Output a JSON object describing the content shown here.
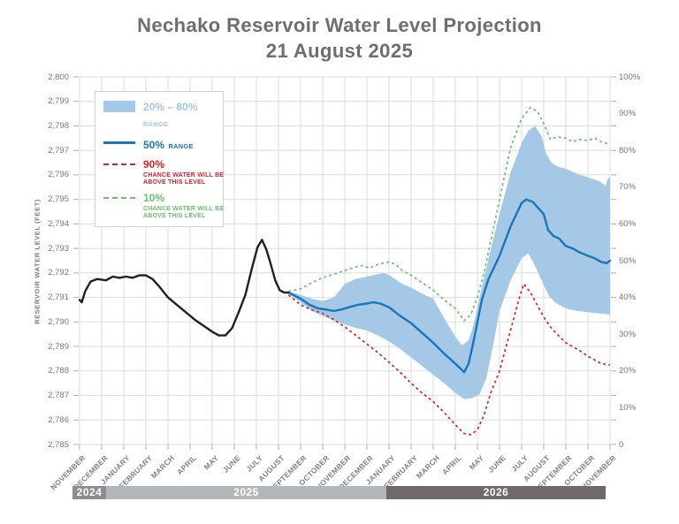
{
  "title": {
    "line1": "Nechako Reservoir Water Level Projection",
    "line2": "21 August 2025"
  },
  "y_axis": {
    "title": "RESERVOIR WATER LEVEL (FEET)",
    "min": 2785,
    "max": 2800,
    "step": 1
  },
  "y2_axis": {
    "ticks": [
      "100%",
      "90%",
      "80%",
      "70%",
      "60%",
      "50%",
      "40%",
      "30%",
      "20%",
      "10%",
      "0"
    ]
  },
  "x_axis": {
    "months": [
      "NOVEMBER",
      "DECEMBER",
      "JANUARY",
      "FEBRUARY",
      "MARCH",
      "APRIL",
      "MAY",
      "JUNE",
      "JULY",
      "AUGUST",
      "SEPTEMBER",
      "OCTOBER",
      "NOVEMBER",
      "DECEMBER",
      "JANUARY",
      "FEBRUARY",
      "MARCH",
      "APRIL",
      "MAY",
      "JUNE",
      "JULY",
      "AUGUST",
      "SEPTEMBER",
      "OCTOBER",
      "NOVEMBER"
    ],
    "index_base": "0 = November 2024"
  },
  "year_bars": [
    {
      "label": "2024"
    },
    {
      "label": "2025"
    },
    {
      "label": "2026"
    }
  ],
  "legend": {
    "items": [
      {
        "label": "20% – 80%",
        "suffix": "RANGE",
        "sub": ""
      },
      {
        "label": "50%",
        "suffix": "RANGE",
        "sub": ""
      },
      {
        "label": "90%",
        "suffix": "",
        "sub": "CHANCE WATER WILL BE ABOVE THIS LEVEL"
      },
      {
        "label": "10%",
        "suffix": "",
        "sub": "CHANCE WATER WILL BE ABOVE THIS LEVEL"
      }
    ]
  },
  "colors": {
    "band": "#a4c8e6",
    "p50": "#1b75bb",
    "p90": "#da2128",
    "p10": "#6cbf6c",
    "historical": "#231f20",
    "grid": "#dadbdc",
    "tick": "#abadb0",
    "bar_2024": "#8b8d90",
    "bar_2025": "#b3b7ba",
    "bar_2026": "#6f696a"
  },
  "chart_data": {
    "type": "line",
    "x_unit": "months since November 2024 (axis ticks at month start)",
    "y_unit": "reservoir water level, feet",
    "ylim": [
      2785,
      2800
    ],
    "y2lim_percent": [
      0,
      100
    ],
    "grid": true,
    "legend_position": "upper-left",
    "series": [
      {
        "name": "historical",
        "style": "solid-black",
        "points": [
          [
            0,
            2790.9
          ],
          [
            0.1,
            2790.8
          ],
          [
            0.25,
            2791.25
          ],
          [
            0.5,
            2791.65
          ],
          [
            0.8,
            2791.75
          ],
          [
            1.2,
            2791.7
          ],
          [
            1.5,
            2791.85
          ],
          [
            1.8,
            2791.8
          ],
          [
            2.1,
            2791.85
          ],
          [
            2.4,
            2791.8
          ],
          [
            2.7,
            2791.9
          ],
          [
            3,
            2791.9
          ],
          [
            3.3,
            2791.75
          ],
          [
            3.6,
            2791.45
          ],
          [
            4,
            2791.0
          ],
          [
            4.4,
            2790.7
          ],
          [
            4.8,
            2790.4
          ],
          [
            5.2,
            2790.1
          ],
          [
            5.6,
            2789.85
          ],
          [
            6,
            2789.6
          ],
          [
            6.3,
            2789.45
          ],
          [
            6.6,
            2789.45
          ],
          [
            6.9,
            2789.75
          ],
          [
            7.2,
            2790.4
          ],
          [
            7.5,
            2791.1
          ],
          [
            7.8,
            2792.2
          ],
          [
            8.05,
            2793.05
          ],
          [
            8.25,
            2793.35
          ],
          [
            8.45,
            2792.95
          ],
          [
            8.65,
            2792.35
          ],
          [
            8.85,
            2791.7
          ],
          [
            9.05,
            2791.3
          ],
          [
            9.25,
            2791.2
          ],
          [
            9.45,
            2791.2
          ]
        ]
      },
      {
        "name": "p50_median",
        "style": "solid-blue",
        "points": [
          [
            9.45,
            2791.2
          ],
          [
            10,
            2790.95
          ],
          [
            10.4,
            2790.7
          ],
          [
            10.8,
            2790.55
          ],
          [
            11.2,
            2790.5
          ],
          [
            11.5,
            2790.45
          ],
          [
            11.8,
            2790.5
          ],
          [
            12.2,
            2790.6
          ],
          [
            12.6,
            2790.7
          ],
          [
            13,
            2790.75
          ],
          [
            13.3,
            2790.8
          ],
          [
            13.6,
            2790.75
          ],
          [
            14,
            2790.6
          ],
          [
            14.5,
            2790.25
          ],
          [
            15,
            2789.95
          ],
          [
            15.5,
            2789.55
          ],
          [
            16,
            2789.15
          ],
          [
            16.5,
            2788.7
          ],
          [
            17,
            2788.3
          ],
          [
            17.4,
            2787.95
          ],
          [
            17.6,
            2788.3
          ],
          [
            17.8,
            2789.1
          ],
          [
            18,
            2790.0
          ],
          [
            18.2,
            2790.9
          ],
          [
            18.5,
            2791.75
          ],
          [
            19,
            2792.7
          ],
          [
            19.5,
            2793.9
          ],
          [
            20,
            2794.85
          ],
          [
            20.2,
            2795.0
          ],
          [
            20.5,
            2794.9
          ],
          [
            20.8,
            2794.6
          ],
          [
            21,
            2794.4
          ],
          [
            21.2,
            2793.75
          ],
          [
            21.45,
            2793.5
          ],
          [
            21.7,
            2793.4
          ],
          [
            22,
            2793.1
          ],
          [
            22.3,
            2793.0
          ],
          [
            22.6,
            2792.85
          ],
          [
            23,
            2792.7
          ],
          [
            23.3,
            2792.6
          ],
          [
            23.6,
            2792.45
          ],
          [
            23.85,
            2792.4
          ],
          [
            24,
            2792.5
          ]
        ]
      },
      {
        "name": "band_upper_p20",
        "style": "band-edge",
        "points": [
          [
            9.45,
            2791.25
          ],
          [
            10,
            2791.1
          ],
          [
            10.5,
            2790.95
          ],
          [
            11,
            2790.85
          ],
          [
            11.5,
            2791.0
          ],
          [
            12,
            2791.55
          ],
          [
            12.5,
            2791.75
          ],
          [
            13,
            2791.85
          ],
          [
            13.5,
            2791.95
          ],
          [
            13.8,
            2792.0
          ],
          [
            14.2,
            2791.8
          ],
          [
            14.6,
            2791.55
          ],
          [
            15,
            2791.4
          ],
          [
            15.5,
            2791.15
          ],
          [
            16,
            2790.95
          ],
          [
            16.5,
            2790.15
          ],
          [
            17,
            2789.4
          ],
          [
            17.3,
            2789.05
          ],
          [
            17.6,
            2789.25
          ],
          [
            17.8,
            2789.8
          ],
          [
            18,
            2790.6
          ],
          [
            18.5,
            2792.6
          ],
          [
            19,
            2794.4
          ],
          [
            19.5,
            2796.1
          ],
          [
            20,
            2797.3
          ],
          [
            20.3,
            2797.8
          ],
          [
            20.6,
            2798.0
          ],
          [
            20.9,
            2797.6
          ],
          [
            21.1,
            2796.9
          ],
          [
            21.35,
            2796.5
          ],
          [
            21.6,
            2796.35
          ],
          [
            22,
            2796.25
          ],
          [
            22.5,
            2796.05
          ],
          [
            23,
            2795.9
          ],
          [
            23.5,
            2795.75
          ],
          [
            23.8,
            2795.55
          ],
          [
            23.9,
            2795.85
          ],
          [
            24,
            2795.9
          ]
        ]
      },
      {
        "name": "band_lower_p80",
        "style": "band-edge",
        "points": [
          [
            9.45,
            2791.15
          ],
          [
            10,
            2790.8
          ],
          [
            10.5,
            2790.45
          ],
          [
            11,
            2790.25
          ],
          [
            11.5,
            2790.05
          ],
          [
            12,
            2789.9
          ],
          [
            12.5,
            2789.75
          ],
          [
            13,
            2789.65
          ],
          [
            13.5,
            2789.45
          ],
          [
            14,
            2789.2
          ],
          [
            14.5,
            2788.9
          ],
          [
            15,
            2788.55
          ],
          [
            15.5,
            2788.2
          ],
          [
            16,
            2787.85
          ],
          [
            16.5,
            2787.5
          ],
          [
            17,
            2787.1
          ],
          [
            17.4,
            2786.85
          ],
          [
            17.8,
            2786.9
          ],
          [
            18.1,
            2787.05
          ],
          [
            18.4,
            2787.7
          ],
          [
            18.7,
            2789.0
          ],
          [
            19,
            2790.45
          ],
          [
            19.5,
            2791.7
          ],
          [
            20,
            2792.6
          ],
          [
            20.3,
            2792.8
          ],
          [
            20.6,
            2792.3
          ],
          [
            21,
            2791.5
          ],
          [
            21.25,
            2791.05
          ],
          [
            21.5,
            2790.8
          ],
          [
            22,
            2790.55
          ],
          [
            22.5,
            2790.45
          ],
          [
            23,
            2790.4
          ],
          [
            23.5,
            2790.35
          ],
          [
            24,
            2790.3
          ]
        ]
      },
      {
        "name": "p10_chance_above",
        "style": "dashed-green",
        "points": [
          [
            9.45,
            2791.25
          ],
          [
            10,
            2791.35
          ],
          [
            10.5,
            2791.6
          ],
          [
            11,
            2791.8
          ],
          [
            11.5,
            2791.95
          ],
          [
            12,
            2792.1
          ],
          [
            12.5,
            2792.25
          ],
          [
            12.8,
            2792.3
          ],
          [
            13.1,
            2792.2
          ],
          [
            13.5,
            2792.35
          ],
          [
            14,
            2792.45
          ],
          [
            14.3,
            2792.35
          ],
          [
            14.6,
            2792.1
          ],
          [
            15,
            2791.9
          ],
          [
            15.5,
            2791.6
          ],
          [
            16,
            2791.3
          ],
          [
            16.5,
            2790.9
          ],
          [
            17,
            2790.55
          ],
          [
            17.4,
            2790.05
          ],
          [
            17.7,
            2790.3
          ],
          [
            18,
            2791.0
          ],
          [
            18.3,
            2792.0
          ],
          [
            18.6,
            2793.3
          ],
          [
            19,
            2795.0
          ],
          [
            19.5,
            2797.1
          ],
          [
            20,
            2798.3
          ],
          [
            20.4,
            2798.75
          ],
          [
            20.7,
            2798.6
          ],
          [
            21,
            2798.1
          ],
          [
            21.3,
            2797.45
          ],
          [
            21.6,
            2797.55
          ],
          [
            22,
            2797.5
          ],
          [
            22.3,
            2797.35
          ],
          [
            22.6,
            2797.45
          ],
          [
            23,
            2797.4
          ],
          [
            23.3,
            2797.5
          ],
          [
            23.6,
            2797.35
          ],
          [
            24,
            2797.25
          ]
        ]
      },
      {
        "name": "p90_chance_above",
        "style": "dashed-red",
        "points": [
          [
            9.45,
            2791.1
          ],
          [
            10,
            2790.7
          ],
          [
            10.5,
            2790.5
          ],
          [
            11,
            2790.35
          ],
          [
            11.5,
            2790.1
          ],
          [
            12,
            2789.8
          ],
          [
            12.5,
            2789.45
          ],
          [
            13,
            2789.1
          ],
          [
            13.5,
            2788.75
          ],
          [
            14,
            2788.35
          ],
          [
            14.5,
            2787.95
          ],
          [
            15,
            2787.5
          ],
          [
            15.5,
            2787.1
          ],
          [
            16,
            2786.75
          ],
          [
            16.5,
            2786.3
          ],
          [
            17,
            2785.8
          ],
          [
            17.4,
            2785.45
          ],
          [
            17.7,
            2785.4
          ],
          [
            18,
            2785.6
          ],
          [
            18.3,
            2786.2
          ],
          [
            18.6,
            2787.1
          ],
          [
            19,
            2788.0
          ],
          [
            19.3,
            2789.0
          ],
          [
            19.6,
            2790.0
          ],
          [
            19.9,
            2791.0
          ],
          [
            20.1,
            2791.55
          ],
          [
            20.4,
            2791.2
          ],
          [
            20.7,
            2790.7
          ],
          [
            21,
            2790.2
          ],
          [
            21.3,
            2789.8
          ],
          [
            21.6,
            2789.5
          ],
          [
            22,
            2789.15
          ],
          [
            22.3,
            2789.0
          ],
          [
            22.6,
            2788.85
          ],
          [
            23,
            2788.6
          ],
          [
            23.3,
            2788.45
          ],
          [
            23.6,
            2788.3
          ],
          [
            24,
            2788.25
          ]
        ]
      }
    ]
  }
}
